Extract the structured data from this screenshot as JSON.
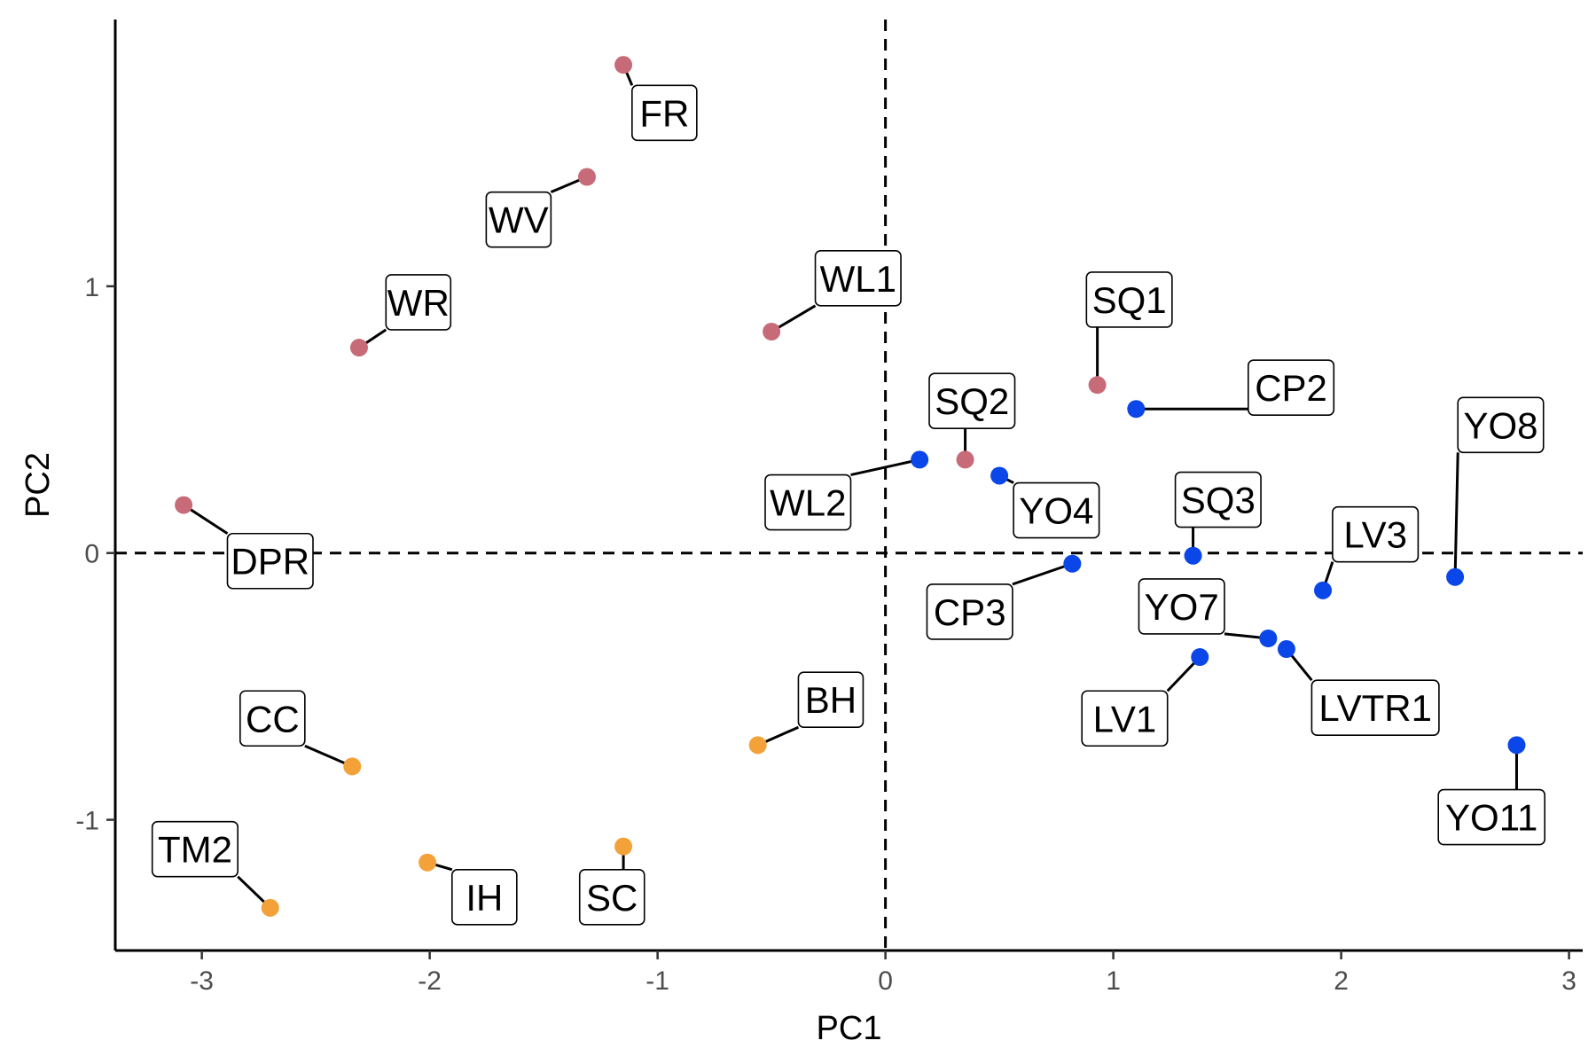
{
  "chart_data": {
    "type": "scatter",
    "title": "",
    "xlabel": "PC1",
    "ylabel": "PC2",
    "xlim": [
      -3.38,
      3.06
    ],
    "ylim": [
      -1.49,
      2.0
    ],
    "xticks": [
      -3,
      -2,
      -1,
      0,
      1,
      2,
      3
    ],
    "yticks": [
      -1,
      0,
      1
    ],
    "reference_lines": {
      "x": 0,
      "y": 0,
      "style": "dashed"
    },
    "grid": false,
    "legend": "none",
    "group_colors": {
      "rose": "#c76b78",
      "blue": "#0a46e8",
      "orange": "#f3a23a"
    },
    "points": [
      {
        "label": "FR",
        "x": -1.15,
        "y": 1.83,
        "group": "rose",
        "label_x": -0.97,
        "label_y": 1.65
      },
      {
        "label": "WV",
        "x": -1.31,
        "y": 1.41,
        "group": "rose",
        "label_x": -1.61,
        "label_y": 1.25
      },
      {
        "label": "WR",
        "x": -2.31,
        "y": 0.77,
        "group": "rose",
        "label_x": -2.05,
        "label_y": 0.94
      },
      {
        "label": "WL1",
        "x": -0.5,
        "y": 0.83,
        "group": "rose",
        "label_x": -0.12,
        "label_y": 1.03
      },
      {
        "label": "DPR",
        "x": -3.08,
        "y": 0.18,
        "group": "rose",
        "label_x": -2.7,
        "label_y": -0.03
      },
      {
        "label": "SQ1",
        "x": 0.93,
        "y": 0.63,
        "group": "rose",
        "label_x": 1.07,
        "label_y": 0.95
      },
      {
        "label": "SQ2",
        "x": 0.35,
        "y": 0.35,
        "group": "rose",
        "label_x": 0.38,
        "label_y": 0.57
      },
      {
        "label": "WL2",
        "x": 0.15,
        "y": 0.35,
        "group": "blue",
        "label_x": -0.34,
        "label_y": 0.19
      },
      {
        "label": "YO4",
        "x": 0.5,
        "y": 0.29,
        "group": "blue",
        "label_x": 0.75,
        "label_y": 0.16
      },
      {
        "label": "CP2",
        "x": 1.1,
        "y": 0.54,
        "group": "blue",
        "label_x": 1.78,
        "label_y": 0.62
      },
      {
        "label": "SQ3",
        "x": 1.35,
        "y": -0.01,
        "group": "blue",
        "label_x": 1.46,
        "label_y": 0.2
      },
      {
        "label": "CP3",
        "x": 0.82,
        "y": -0.04,
        "group": "blue",
        "label_x": 0.37,
        "label_y": -0.22
      },
      {
        "label": "LV3",
        "x": 1.92,
        "y": -0.14,
        "group": "blue",
        "label_x": 2.15,
        "label_y": 0.07
      },
      {
        "label": "YO8",
        "x": 2.5,
        "y": -0.09,
        "group": "blue",
        "label_x": 2.7,
        "label_y": 0.48
      },
      {
        "label": "YO7",
        "x": 1.68,
        "y": -0.32,
        "group": "blue",
        "label_x": 1.3,
        "label_y": -0.2
      },
      {
        "label": "LVTR1",
        "x": 1.76,
        "y": -0.36,
        "group": "blue",
        "label_x": 2.15,
        "label_y": -0.58
      },
      {
        "label": "LV1",
        "x": 1.38,
        "y": -0.39,
        "group": "blue",
        "label_x": 1.05,
        "label_y": -0.62
      },
      {
        "label": "YO11",
        "x": 2.77,
        "y": -0.72,
        "group": "blue",
        "label_x": 2.66,
        "label_y": -0.99
      },
      {
        "label": "BH",
        "x": -0.56,
        "y": -0.72,
        "group": "orange",
        "label_x": -0.24,
        "label_y": -0.55
      },
      {
        "label": "CC",
        "x": -2.34,
        "y": -0.8,
        "group": "orange",
        "label_x": -2.69,
        "label_y": -0.62
      },
      {
        "label": "TM2",
        "x": -2.7,
        "y": -1.33,
        "group": "orange",
        "label_x": -3.03,
        "label_y": -1.11
      },
      {
        "label": "IH",
        "x": -2.01,
        "y": -1.16,
        "group": "orange",
        "label_x": -1.76,
        "label_y": -1.29
      },
      {
        "label": "SC",
        "x": -1.15,
        "y": -1.1,
        "group": "orange",
        "label_x": -1.2,
        "label_y": -1.29
      }
    ]
  }
}
